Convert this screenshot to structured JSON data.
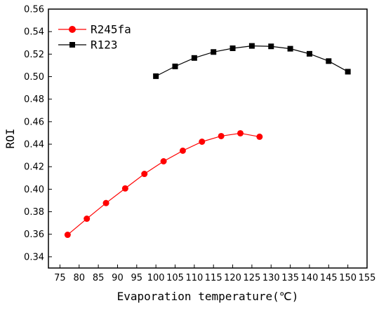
{
  "chart_data": {
    "type": "line",
    "title": "",
    "xlabel": "Evaporation temperature(℃)",
    "ylabel": "ROI",
    "xlim": [
      72,
      155
    ],
    "ylim": [
      0.33,
      0.56
    ],
    "xticks": [
      75,
      80,
      85,
      90,
      95,
      100,
      105,
      110,
      115,
      120,
      125,
      130,
      135,
      140,
      145,
      150,
      155
    ],
    "yticks": [
      0.34,
      0.36,
      0.38,
      0.4,
      0.42,
      0.44,
      0.46,
      0.48,
      0.5,
      0.52,
      0.54,
      0.56
    ],
    "ytick_labels": [
      "0.34",
      "0.36",
      "0.38",
      "0.40",
      "0.42",
      "0.44",
      "0.46",
      "0.48",
      "0.50",
      "0.52",
      "0.54",
      "0.56"
    ],
    "grid": false,
    "legend_position": "top-left",
    "series": [
      {
        "name": "R245fa",
        "color": "#ff0000",
        "marker": "circle",
        "x": [
          77,
          82,
          87,
          92,
          97,
          102,
          107,
          112,
          117,
          122,
          127
        ],
        "y": [
          0.3595,
          0.3738,
          0.3877,
          0.4007,
          0.4136,
          0.4248,
          0.4342,
          0.4422,
          0.4472,
          0.4497,
          0.4466
        ]
      },
      {
        "name": "R123",
        "color": "#000000",
        "marker": "square",
        "x": [
          100,
          105,
          110,
          115,
          120,
          125,
          130,
          135,
          140,
          145,
          150
        ],
        "y": [
          0.5004,
          0.5091,
          0.5166,
          0.5219,
          0.5252,
          0.5273,
          0.5269,
          0.5248,
          0.5203,
          0.5138,
          0.5044
        ]
      }
    ]
  }
}
